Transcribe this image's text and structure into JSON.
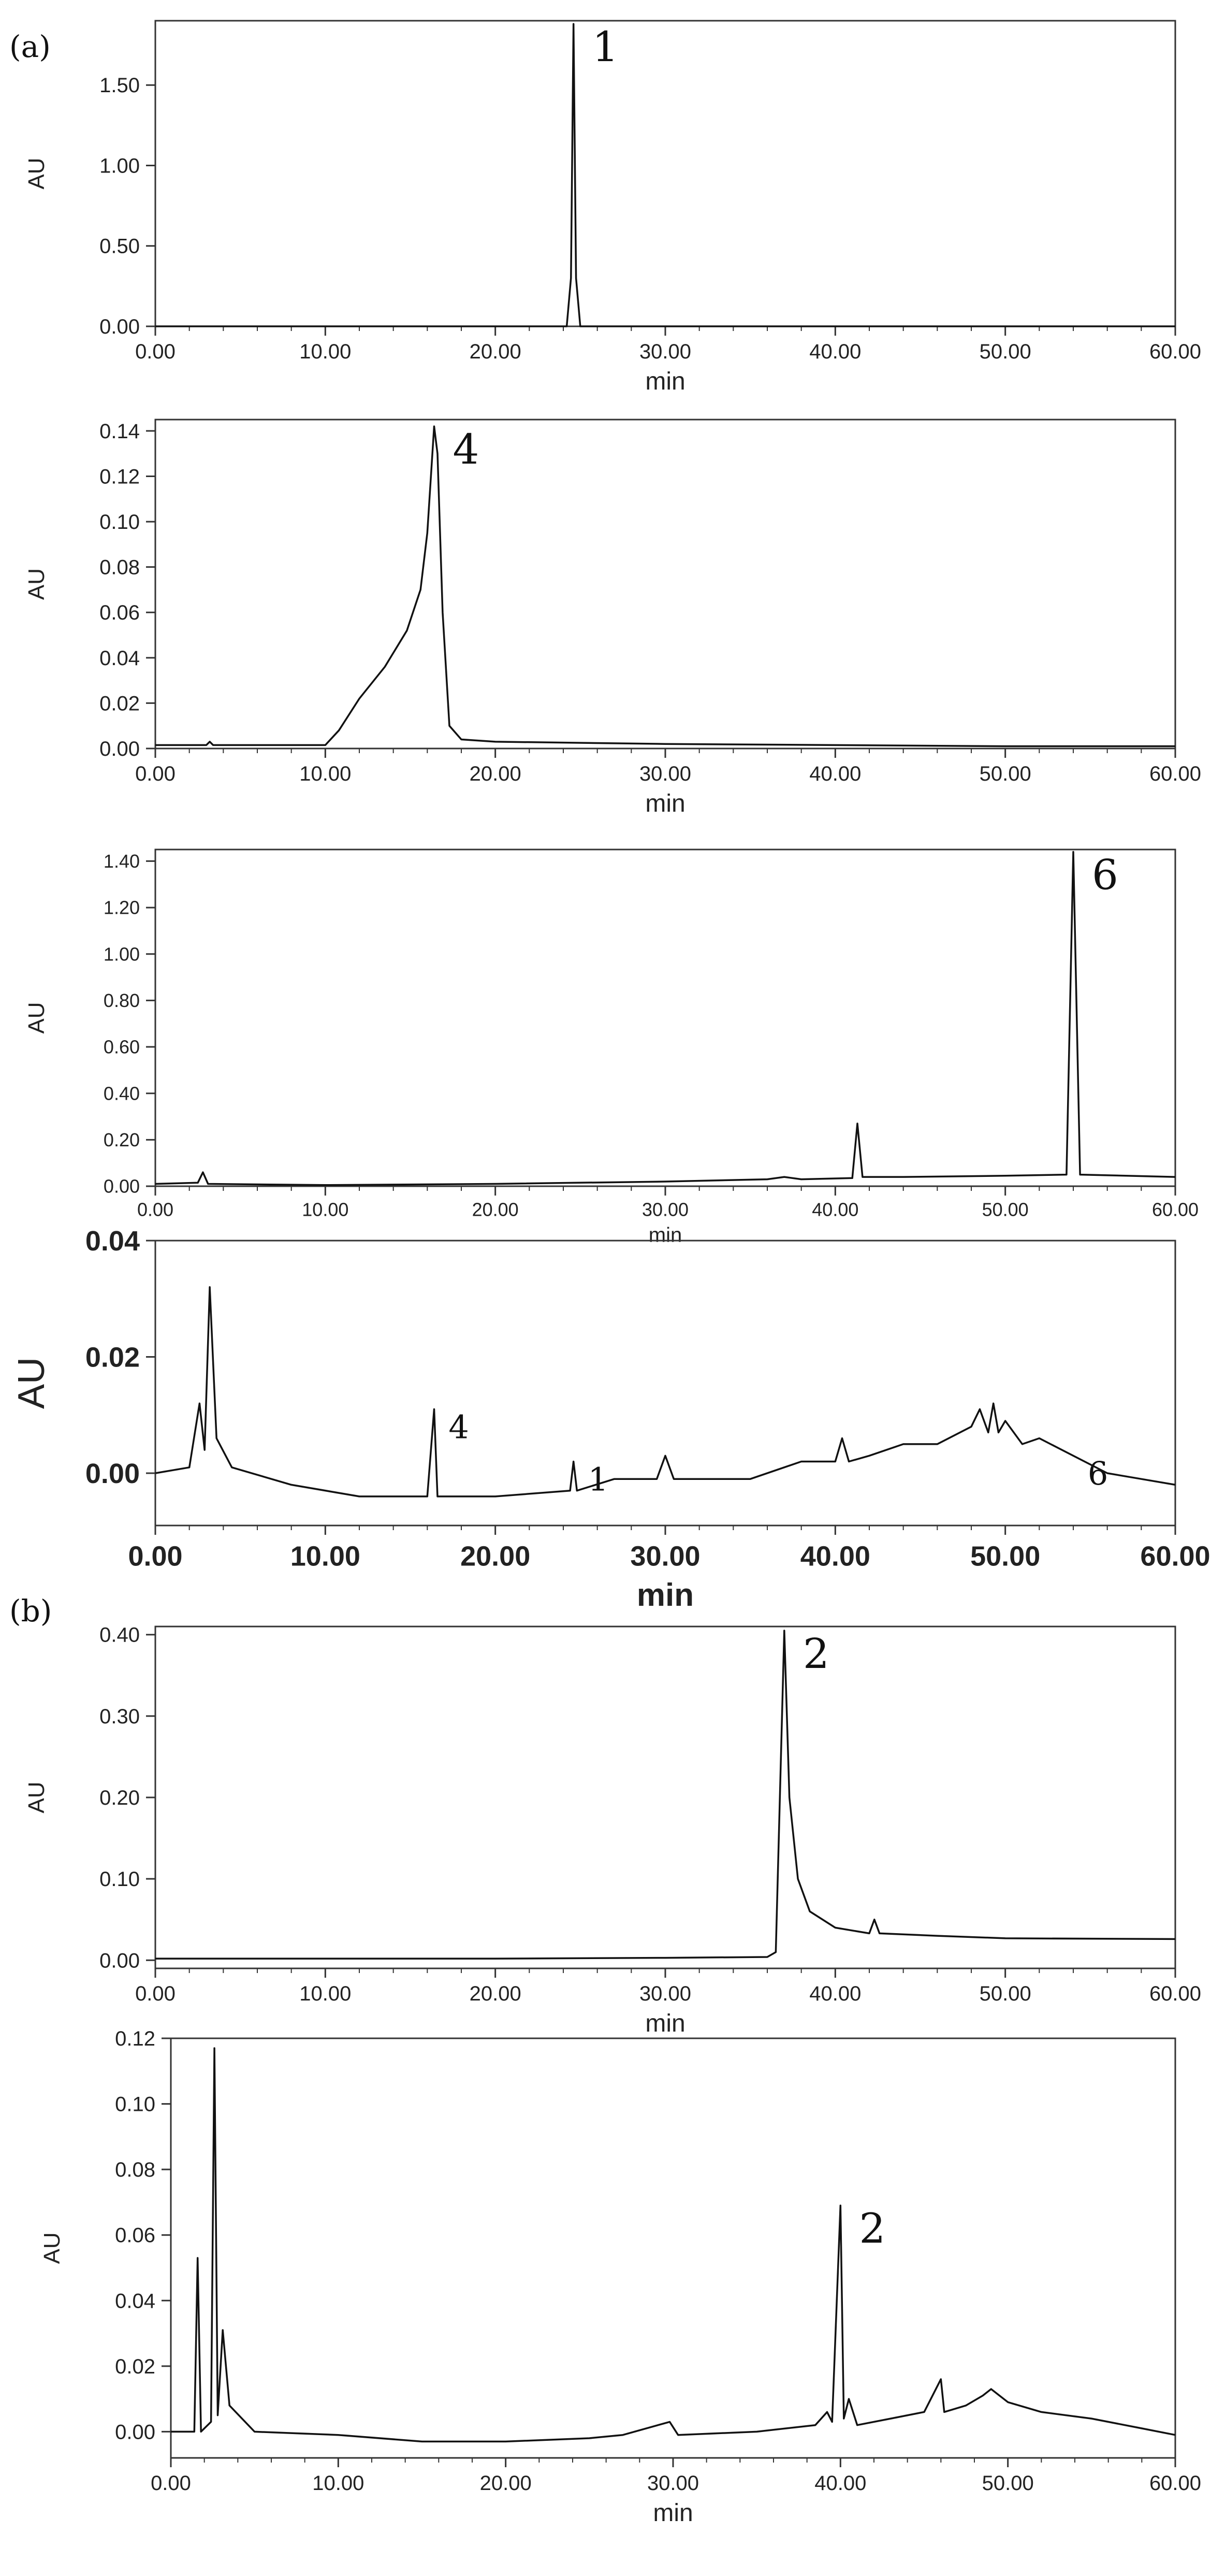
{
  "panel_labels": [
    "(a)",
    "(b)"
  ],
  "chart_data": [
    {
      "type": "line",
      "ylabel": "AU",
      "xlabel": "min",
      "xlim": [
        0,
        60
      ],
      "ylim": [
        0,
        1.9
      ],
      "xticks": [
        "0.00",
        "10.00",
        "20.00",
        "30.00",
        "40.00",
        "50.00",
        "60.00"
      ],
      "yticks": [
        "0.00",
        "0.50",
        "1.00",
        "1.50"
      ],
      "ytick_values": [
        0,
        0.5,
        1.0,
        1.5
      ],
      "peaks": [
        {
          "label": "1",
          "x": 24.6,
          "y": 1.88
        }
      ],
      "baseline": [
        [
          0,
          0.0
        ],
        [
          24.2,
          0.0
        ],
        [
          24.45,
          0.3
        ],
        [
          24.6,
          1.88
        ],
        [
          24.75,
          0.3
        ],
        [
          25.0,
          0.0
        ],
        [
          60,
          0.0
        ]
      ]
    },
    {
      "type": "line",
      "ylabel": "AU",
      "xlabel": "min",
      "xlim": [
        0,
        60
      ],
      "ylim": [
        0,
        0.145
      ],
      "xticks": [
        "0.00",
        "10.00",
        "20.00",
        "30.00",
        "40.00",
        "50.00",
        "60.00"
      ],
      "yticks": [
        "0.00",
        "0.02",
        "0.04",
        "0.06",
        "0.08",
        "0.10",
        "0.12",
        "0.14"
      ],
      "ytick_values": [
        0,
        0.02,
        0.04,
        0.06,
        0.08,
        0.1,
        0.12,
        0.14
      ],
      "peaks": [
        {
          "label": "4",
          "x": 16.4,
          "y": 0.142
        }
      ],
      "baseline": [
        [
          0,
          0.0015
        ],
        [
          3.0,
          0.0015
        ],
        [
          3.2,
          0.003
        ],
        [
          3.4,
          0.0015
        ],
        [
          10.0,
          0.0015
        ],
        [
          10.8,
          0.008
        ],
        [
          12.0,
          0.022
        ],
        [
          13.5,
          0.036
        ],
        [
          14.8,
          0.052
        ],
        [
          15.6,
          0.07
        ],
        [
          16.0,
          0.095
        ],
        [
          16.4,
          0.142
        ],
        [
          16.6,
          0.13
        ],
        [
          16.9,
          0.06
        ],
        [
          17.3,
          0.01
        ],
        [
          18.0,
          0.004
        ],
        [
          20,
          0.003
        ],
        [
          30,
          0.002
        ],
        [
          40,
          0.0015
        ],
        [
          50,
          0.001
        ],
        [
          60,
          0.001
        ]
      ]
    },
    {
      "type": "line",
      "ylabel": "AU",
      "xlabel": "min",
      "xlim": [
        0,
        60
      ],
      "ylim": [
        0,
        1.45
      ],
      "xticks": [
        "0.00",
        "10.00",
        "20.00",
        "30.00",
        "40.00",
        "50.00",
        "60.00"
      ],
      "yticks": [
        "0.00",
        "0.20",
        "0.40",
        "0.60",
        "0.80",
        "1.00",
        "1.20",
        "1.40"
      ],
      "ytick_values": [
        0,
        0.2,
        0.4,
        0.6,
        0.8,
        1.0,
        1.2,
        1.4
      ],
      "peaks": [
        {
          "label": "6",
          "x": 54.0,
          "y": 1.44
        }
      ],
      "baseline": [
        [
          0,
          0.01
        ],
        [
          2.5,
          0.015
        ],
        [
          2.8,
          0.06
        ],
        [
          3.1,
          0.01
        ],
        [
          10,
          0.005
        ],
        [
          20,
          0.01
        ],
        [
          30,
          0.02
        ],
        [
          36,
          0.03
        ],
        [
          37,
          0.04
        ],
        [
          38,
          0.03
        ],
        [
          41,
          0.035
        ],
        [
          41.3,
          0.27
        ],
        [
          41.6,
          0.04
        ],
        [
          44,
          0.04
        ],
        [
          50,
          0.045
        ],
        [
          53.6,
          0.05
        ],
        [
          54.0,
          1.44
        ],
        [
          54.4,
          0.05
        ],
        [
          60,
          0.04
        ]
      ]
    },
    {
      "type": "line",
      "ylabel": "AU",
      "xlabel": "min",
      "xlim": [
        0,
        60
      ],
      "ylim": [
        -0.009,
        0.04
      ],
      "xticks": [
        "0.00",
        "10.00",
        "20.00",
        "30.00",
        "40.00",
        "50.00",
        "60.00"
      ],
      "yticks": [
        "0.00",
        "0.02",
        "0.04"
      ],
      "ytick_values": [
        0,
        0.02,
        0.04
      ],
      "peaks": [
        {
          "label": "4",
          "x": 16.4,
          "y": 0.011
        },
        {
          "label": "1",
          "x": 24.6,
          "y": 0.002
        },
        {
          "label": "6",
          "x": 54.0,
          "y": 0.003
        }
      ],
      "baseline": [
        [
          0,
          0.0
        ],
        [
          2.0,
          0.001
        ],
        [
          2.6,
          0.012
        ],
        [
          2.9,
          0.004
        ],
        [
          3.2,
          0.032
        ],
        [
          3.6,
          0.006
        ],
        [
          4.5,
          0.001
        ],
        [
          8,
          -0.002
        ],
        [
          12,
          -0.004
        ],
        [
          16,
          -0.004
        ],
        [
          16.4,
          0.011
        ],
        [
          16.6,
          -0.004
        ],
        [
          20,
          -0.004
        ],
        [
          24.4,
          -0.003
        ],
        [
          24.6,
          0.002
        ],
        [
          24.8,
          -0.003
        ],
        [
          27,
          -0.001
        ],
        [
          29.5,
          -0.001
        ],
        [
          30,
          0.003
        ],
        [
          30.5,
          -0.001
        ],
        [
          35,
          -0.001
        ],
        [
          38,
          0.002
        ],
        [
          40,
          0.002
        ],
        [
          40.4,
          0.006
        ],
        [
          40.8,
          0.002
        ],
        [
          42,
          0.003
        ],
        [
          44,
          0.005
        ],
        [
          46,
          0.005
        ],
        [
          48,
          0.008
        ],
        [
          48.5,
          0.011
        ],
        [
          49,
          0.007
        ],
        [
          49.3,
          0.012
        ],
        [
          49.6,
          0.007
        ],
        [
          50,
          0.009
        ],
        [
          51,
          0.005
        ],
        [
          52,
          0.006
        ],
        [
          54,
          0.003
        ],
        [
          56,
          0.0
        ],
        [
          58,
          -0.001
        ],
        [
          60,
          -0.002
        ]
      ]
    },
    {
      "type": "line",
      "ylabel": "AU",
      "xlabel": "min",
      "xlim": [
        0,
        60
      ],
      "ylim": [
        -0.01,
        0.41
      ],
      "xticks": [
        "0.00",
        "10.00",
        "20.00",
        "30.00",
        "40.00",
        "50.00",
        "60.00"
      ],
      "yticks": [
        "0.00",
        "0.10",
        "0.20",
        "0.30",
        "0.40"
      ],
      "ytick_values": [
        0,
        0.1,
        0.2,
        0.3,
        0.4
      ],
      "peaks": [
        {
          "label": "2",
          "x": 37.0,
          "y": 0.405
        }
      ],
      "baseline": [
        [
          0,
          0.002
        ],
        [
          20,
          0.002
        ],
        [
          30,
          0.003
        ],
        [
          36,
          0.004
        ],
        [
          36.5,
          0.01
        ],
        [
          37.0,
          0.405
        ],
        [
          37.3,
          0.2
        ],
        [
          37.8,
          0.1
        ],
        [
          38.5,
          0.06
        ],
        [
          40,
          0.04
        ],
        [
          42,
          0.033
        ],
        [
          42.3,
          0.05
        ],
        [
          42.6,
          0.033
        ],
        [
          46,
          0.03
        ],
        [
          50,
          0.027
        ],
        [
          60,
          0.026
        ]
      ]
    },
    {
      "type": "line",
      "ylabel": "AU",
      "xlabel": "min",
      "xlim": [
        0,
        60
      ],
      "ylim": [
        -0.008,
        0.12
      ],
      "xticks": [
        "0.00",
        "10.00",
        "20.00",
        "30.00",
        "40.00",
        "50.00",
        "60.00"
      ],
      "yticks": [
        "0.00",
        "0.02",
        "0.04",
        "0.06",
        "0.08",
        "0.10",
        "0.12"
      ],
      "ytick_values": [
        0,
        0.02,
        0.04,
        0.06,
        0.08,
        0.1,
        0.12
      ],
      "peaks": [
        {
          "label": "2",
          "x": 40.0,
          "y": 0.069
        }
      ],
      "baseline": [
        [
          0,
          0.0
        ],
        [
          1.4,
          0.0
        ],
        [
          1.6,
          0.053
        ],
        [
          1.8,
          0.0
        ],
        [
          2.4,
          0.003
        ],
        [
          2.6,
          0.117
        ],
        [
          2.8,
          0.005
        ],
        [
          3.1,
          0.031
        ],
        [
          3.5,
          0.008
        ],
        [
          5,
          0.0
        ],
        [
          10,
          -0.001
        ],
        [
          15,
          -0.003
        ],
        [
          20,
          -0.003
        ],
        [
          25,
          -0.002
        ],
        [
          27,
          -0.001
        ],
        [
          29.8,
          0.003
        ],
        [
          30.3,
          -0.001
        ],
        [
          35,
          0.0
        ],
        [
          38.5,
          0.002
        ],
        [
          39.2,
          0.006
        ],
        [
          39.5,
          0.003
        ],
        [
          40.0,
          0.069
        ],
        [
          40.2,
          0.004
        ],
        [
          40.5,
          0.01
        ],
        [
          41,
          0.002
        ],
        [
          43,
          0.004
        ],
        [
          45,
          0.006
        ],
        [
          46,
          0.016
        ],
        [
          46.2,
          0.006
        ],
        [
          47.5,
          0.008
        ],
        [
          48.5,
          0.011
        ],
        [
          49,
          0.013
        ],
        [
          50,
          0.009
        ],
        [
          52,
          0.006
        ],
        [
          55,
          0.004
        ],
        [
          58,
          0.001
        ],
        [
          60,
          -0.001
        ]
      ]
    }
  ]
}
